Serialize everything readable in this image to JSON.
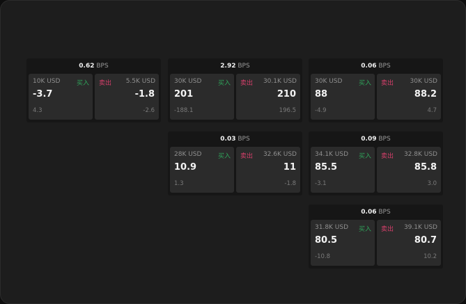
{
  "labels": {
    "buy": "买入",
    "sell": "卖出",
    "unit": "BPS"
  },
  "colors": {
    "buy": "#2fa35a",
    "sell": "#d43f6a"
  },
  "cards": [
    {
      "spread": "0.62",
      "bid_size": "10K USD",
      "bid": "-3.7",
      "bid_change": "4.3",
      "ask_size": "5.5K USD",
      "ask": "-1.8",
      "ask_change": "-2.6"
    },
    {
      "spread": "2.92",
      "bid_size": "30K USD",
      "bid": "201",
      "bid_change": "-188.1",
      "ask_size": "30.1K USD",
      "ask": "210",
      "ask_change": "196.5"
    },
    {
      "spread": "0.06",
      "bid_size": "30K USD",
      "bid": "88",
      "bid_change": "-4.9",
      "ask_size": "30K USD",
      "ask": "88.2",
      "ask_change": "4.7"
    },
    {
      "spread": "0.03",
      "bid_size": "28K USD",
      "bid": "10.9",
      "bid_change": "1.3",
      "ask_size": "32.6K USD",
      "ask": "11",
      "ask_change": "-1.8"
    },
    {
      "spread": "0.09",
      "bid_size": "34.1K USD",
      "bid": "85.5",
      "bid_change": "-3.1",
      "ask_size": "32.8K USD",
      "ask": "85.8",
      "ask_change": "3.0"
    },
    {
      "spread": "0.06",
      "bid_size": "31.8K USD",
      "bid": "80.5",
      "bid_change": "-10.8",
      "ask_size": "39.1K USD",
      "ask": "80.7",
      "ask_change": "10.2"
    }
  ]
}
